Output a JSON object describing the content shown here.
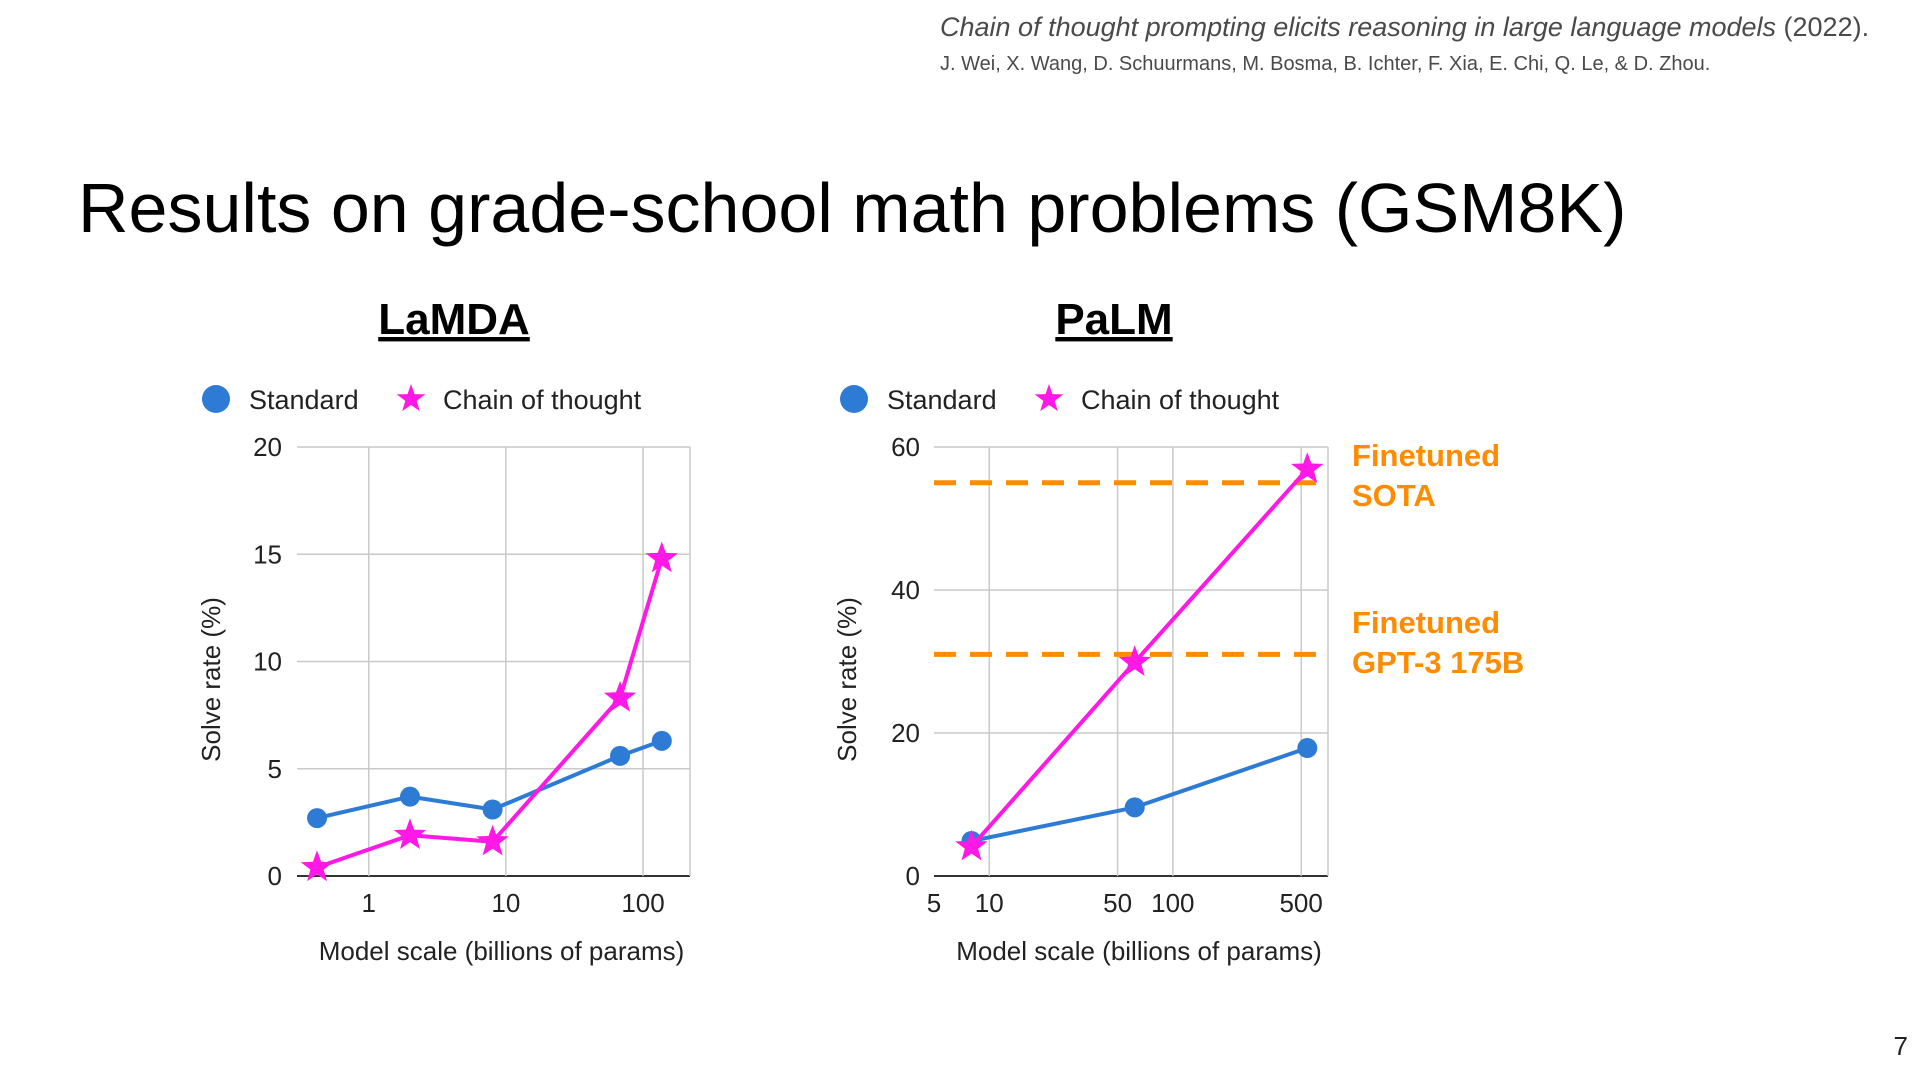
{
  "citation": {
    "title_italic": "Chain of thought prompting elicits reasoning in large language models",
    "year": " (2022).",
    "authors": "J. Wei, X. Wang, D. Schuurmans, M. Bosma, B. Ichter, F. Xia, E. Chi, Q. Le, & D. Zhou."
  },
  "slide_title": "Results on grade-school math problems (GSM8K)",
  "page_number": "7",
  "colors": {
    "standard": "#2e7bd6",
    "chain_of_thought": "#ff18e6",
    "reference_lines": "#ff8c00",
    "grid": "#c9c9c9"
  },
  "chart_data": [
    {
      "type": "line",
      "title": "LaMDA",
      "xlabel": "Model scale (billions of params)",
      "ylabel": "Solve rate (%)",
      "x_scale": "log",
      "xlim": [
        0.3,
        220
      ],
      "ylim": [
        0,
        20
      ],
      "x_ticks": [
        1,
        10,
        100
      ],
      "x_tick_labels": [
        "1",
        "10",
        "100"
      ],
      "y_ticks": [
        0,
        5,
        10,
        15,
        20
      ],
      "y_tick_labels": [
        "0",
        "5",
        "10",
        "15",
        "20"
      ],
      "grid": true,
      "legend": "top",
      "series": [
        {
          "name": "Standard",
          "marker": "circle",
          "x": [
            0.42,
            2,
            8,
            68,
            137
          ],
          "y": [
            2.7,
            3.7,
            3.1,
            5.6,
            6.3
          ]
        },
        {
          "name": "Chain of thought",
          "marker": "star",
          "x": [
            0.42,
            2,
            8,
            68,
            137
          ],
          "y": [
            0.4,
            1.9,
            1.6,
            8.3,
            14.8
          ]
        }
      ]
    },
    {
      "type": "line",
      "title": "PaLM",
      "xlabel": "Model scale (billions of params)",
      "ylabel": "Solve rate (%)",
      "x_scale": "log",
      "xlim": [
        5,
        700
      ],
      "ylim": [
        0,
        60
      ],
      "x_ticks": [
        5,
        10,
        50,
        100,
        500
      ],
      "x_tick_labels": [
        "5",
        "10",
        "50",
        "100",
        "500"
      ],
      "y_ticks": [
        0,
        20,
        40,
        60
      ],
      "y_tick_labels": [
        "0",
        "20",
        "40",
        "60"
      ],
      "grid": true,
      "legend": "top",
      "series": [
        {
          "name": "Standard",
          "marker": "circle",
          "x": [
            8,
            62,
            540
          ],
          "y": [
            4.9,
            9.6,
            17.9
          ]
        },
        {
          "name": "Chain of thought",
          "marker": "star",
          "x": [
            8,
            62,
            540
          ],
          "y": [
            4.1,
            29.9,
            56.9
          ]
        }
      ],
      "reference_lines": [
        {
          "label_line1": "Finetuned",
          "label_line2": "SOTA",
          "y": 55
        },
        {
          "label_line1": "Finetuned",
          "label_line2": "GPT-3 175B",
          "y": 31
        }
      ]
    }
  ]
}
